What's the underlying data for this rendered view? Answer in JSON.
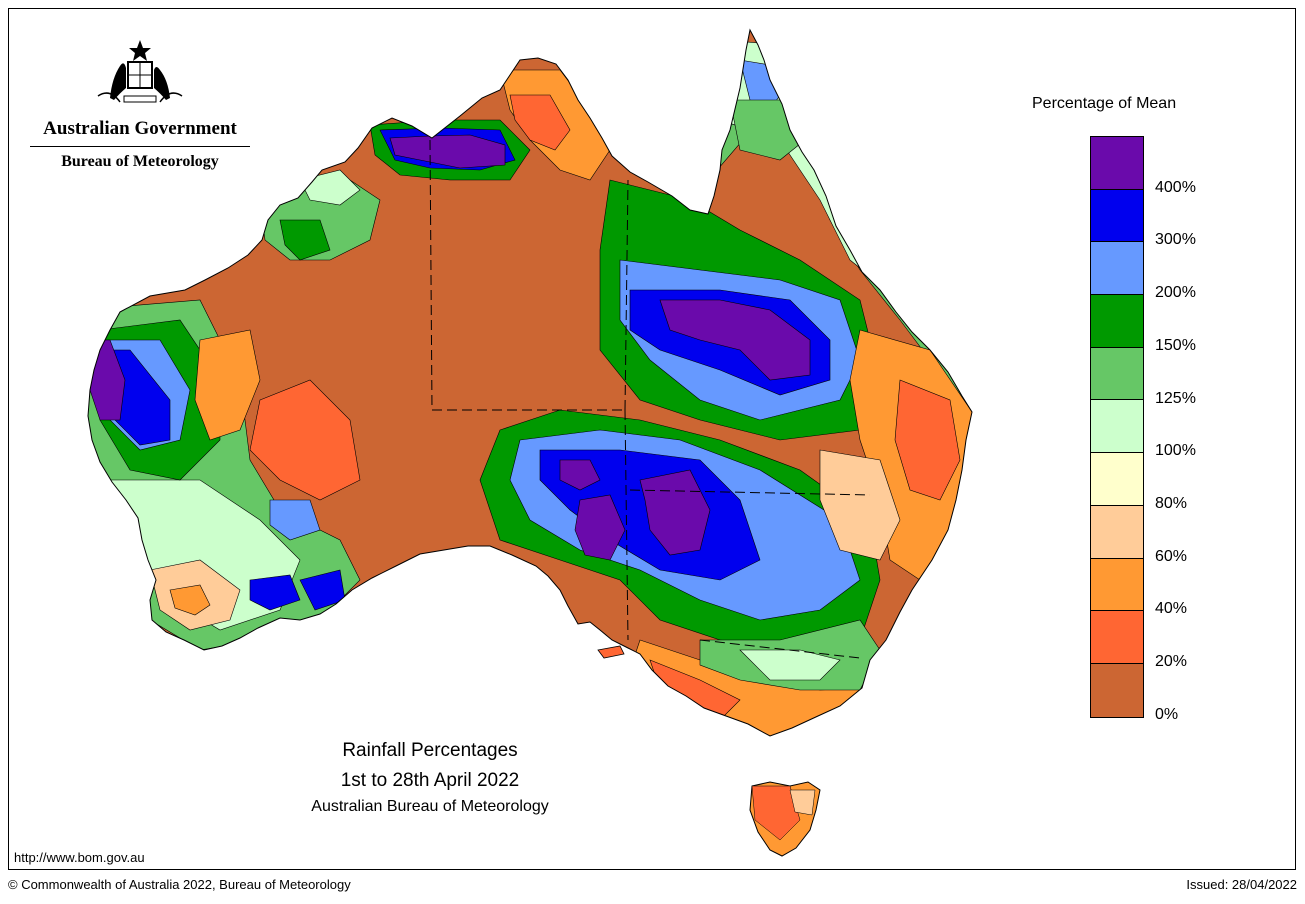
{
  "header": {
    "government": "Australian Government",
    "agency": "Bureau of Meteorology"
  },
  "title": {
    "line1": "Rainfall Percentages",
    "line2": "1st to 28th April 2022",
    "line3": "Australian Bureau of Meteorology"
  },
  "footer": {
    "url": "http://www.bom.gov.au",
    "copyright": "© Commonwealth of Australia 2022, Bureau of Meteorology",
    "issued": "Issued: 28/04/2022"
  },
  "legend": {
    "title": "Percentage of Mean",
    "colors": [
      "#6a0aab",
      "#0000ee",
      "#6699ff",
      "#009900",
      "#66c766",
      "#ccffcc",
      "#ffffcc",
      "#ffcc99",
      "#ff9933",
      "#ff6633",
      "#cc6633"
    ],
    "labels": [
      "400%",
      "300%",
      "200%",
      "150%",
      "125%",
      "100%",
      "80%",
      "60%",
      "40%",
      "20%",
      "0%"
    ]
  },
  "map": {
    "land_color": "#cc6633",
    "outline_color": "#000000"
  }
}
